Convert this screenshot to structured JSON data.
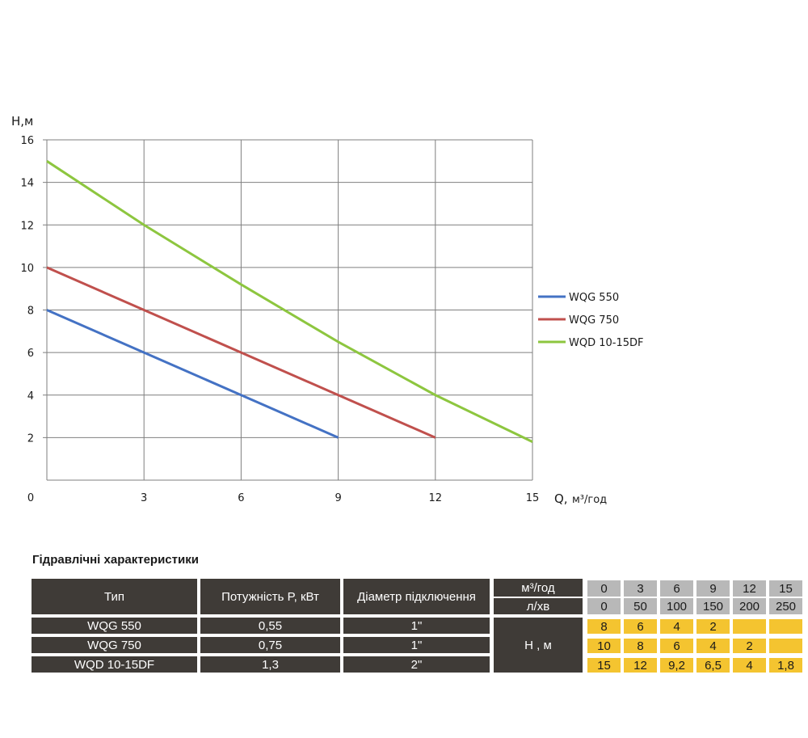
{
  "chart_data": {
    "type": "line",
    "ylabel": "H,м",
    "xlabel": "Q,",
    "xlabel_unit": "м³/год",
    "xlim": [
      0,
      15
    ],
    "ylim": [
      0,
      16
    ],
    "x_ticks": [
      "0",
      "3",
      "6",
      "9",
      "12",
      "15"
    ],
    "y_ticks": [
      "2",
      "4",
      "6",
      "8",
      "10",
      "12",
      "14",
      "16"
    ],
    "grid": true,
    "legend_position": "right",
    "series": [
      {
        "name": "WQG 550",
        "color": "#4472c4",
        "x": [
          0,
          3,
          6,
          9
        ],
        "y": [
          8,
          6,
          4,
          2
        ]
      },
      {
        "name": "WQG 750",
        "color": "#c0504d",
        "x": [
          0,
          3,
          6,
          9,
          12
        ],
        "y": [
          10,
          8,
          6,
          4,
          2
        ]
      },
      {
        "name": "WQD 10-15DF",
        "color": "#8dc63f",
        "x": [
          0,
          3,
          6,
          9,
          12,
          15
        ],
        "y": [
          15,
          12,
          9.2,
          6.5,
          4,
          1.8
        ]
      }
    ]
  },
  "table": {
    "title": "Гідравлічні характеристики",
    "headers": {
      "type": "Тип",
      "power": "Потужність  P, кВт",
      "diameter": "Діаметр підключення",
      "unit_m3": "м³/год",
      "unit_lpm": "л/хв",
      "head": "Н , м"
    },
    "q_m3": [
      "0",
      "3",
      "6",
      "9",
      "12",
      "15"
    ],
    "q_lpm": [
      "0",
      "50",
      "100",
      "150",
      "200",
      "250"
    ],
    "rows": [
      {
        "type": "WQG 550",
        "power": "0,55",
        "diameter": "1\"",
        "head": [
          "8",
          "6",
          "4",
          "2",
          "",
          ""
        ]
      },
      {
        "type": "WQG 750",
        "power": "0,75",
        "diameter": "1\"",
        "head": [
          "10",
          "8",
          "6",
          "4",
          "2",
          ""
        ]
      },
      {
        "type": "WQD 10-15DF",
        "power": "1,3",
        "diameter": "2\"",
        "head": [
          "15",
          "12",
          "9,2",
          "6,5",
          "4",
          "1,8"
        ]
      }
    ]
  }
}
